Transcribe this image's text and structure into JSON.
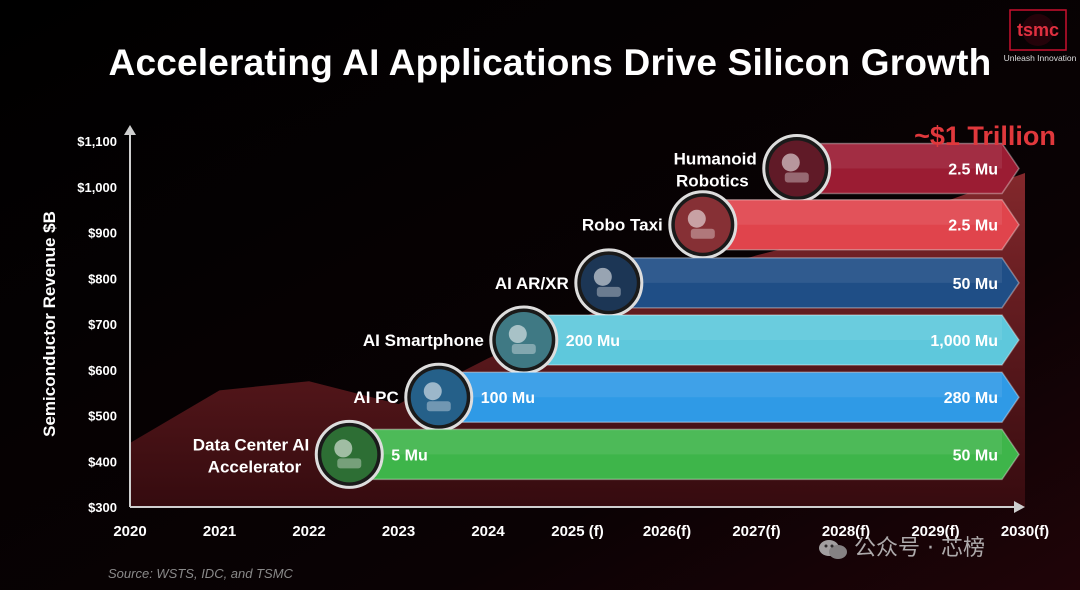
{
  "title": "Accelerating AI Applications Drive Silicon Growth",
  "logo": {
    "text": "tsmc",
    "tagline": "Unleash Innovation"
  },
  "source": "Source: WSTS, IDC, and TSMC",
  "watermark": "公众号 · 芯榜",
  "callout": "~$1 Trillion",
  "colors": {
    "area": "#6b1f22",
    "axis": "#cfcfcf",
    "callout": "#e0383c",
    "humanoid": "#9b1c33",
    "robotaxi": "#e0444c",
    "arxr": "#1f4e86",
    "smartphone": "#5ec8dc",
    "aipc": "#2f9ae6",
    "datacenter": "#3eb54a"
  },
  "chart_data": {
    "type": "area",
    "ylabel": "Semiconductor Revenue $B",
    "yticks": [
      "$300",
      "$400",
      "$500",
      "$600",
      "$700",
      "$800",
      "$900",
      "$1,000",
      "$1,100"
    ],
    "ylim": [
      300,
      1100
    ],
    "xticks": [
      "2020",
      "2021",
      "2022",
      "2023",
      "2024",
      "2025 (f)",
      "2026(f)",
      "2027(f)",
      "2028(f)",
      "2029(f)",
      "2030(f)"
    ],
    "series": [
      {
        "values": [
          440,
          555,
          575,
          525,
          625,
          710,
          790,
          850,
          900,
          960,
          1030
        ]
      }
    ],
    "applications": [
      {
        "name": "Humanoid Robotics",
        "lines": [
          "Humanoid",
          "Robotics"
        ],
        "start_year_index": 7.45,
        "level": 1040,
        "start_label": "",
        "end_label": "2.5 Mu",
        "color_key": "humanoid",
        "icon": "robot-icon"
      },
      {
        "name": "Robo Taxi",
        "lines": [
          "Robo Taxi"
        ],
        "start_year_index": 6.4,
        "level": 917,
        "start_label": "",
        "end_label": "2.5 Mu",
        "color_key": "robotaxi",
        "icon": "car-icon"
      },
      {
        "name": "AI AR/XR",
        "lines": [
          "AI AR/XR"
        ],
        "start_year_index": 5.35,
        "level": 790,
        "start_label": "",
        "end_label": "50 Mu",
        "color_key": "arxr",
        "icon": "vr-headset-icon"
      },
      {
        "name": "AI Smartphone",
        "lines": [
          "AI Smartphone"
        ],
        "start_year_index": 4.4,
        "level": 665,
        "start_label": "200 Mu",
        "end_label": "1,000 Mu",
        "color_key": "smartphone",
        "icon": "smartphone-icon"
      },
      {
        "name": "AI PC",
        "lines": [
          "AI PC"
        ],
        "start_year_index": 3.45,
        "level": 540,
        "start_label": "100 Mu",
        "end_label": "280 Mu",
        "color_key": "aipc",
        "icon": "laptop-icon"
      },
      {
        "name": "Data Center AI Accelerator",
        "lines": [
          "Data Center AI",
          "Accelerator"
        ],
        "start_year_index": 2.45,
        "level": 415,
        "start_label": "5 Mu",
        "end_label": "50 Mu",
        "color_key": "datacenter",
        "icon": "server-rack-icon"
      }
    ]
  }
}
